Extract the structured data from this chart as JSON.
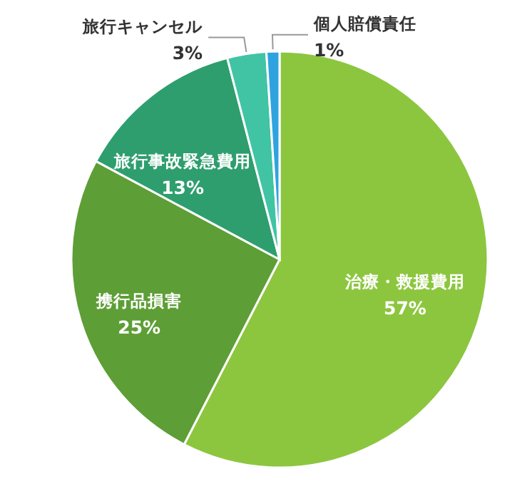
{
  "chart_data": {
    "type": "pie",
    "categories": [
      "治療・救援費用",
      "携行品損害",
      "旅行事故緊急費用",
      "旅行キャンセル",
      "個人賠償責任"
    ],
    "values": [
      57,
      25,
      13,
      3,
      1
    ],
    "value_labels": [
      "57%",
      "25%",
      "13%",
      "3%",
      "1%"
    ],
    "colors": [
      "#8cc63f",
      "#5e9e36",
      "#2e9e6e",
      "#40c4a4",
      "#2fa3e0"
    ]
  }
}
